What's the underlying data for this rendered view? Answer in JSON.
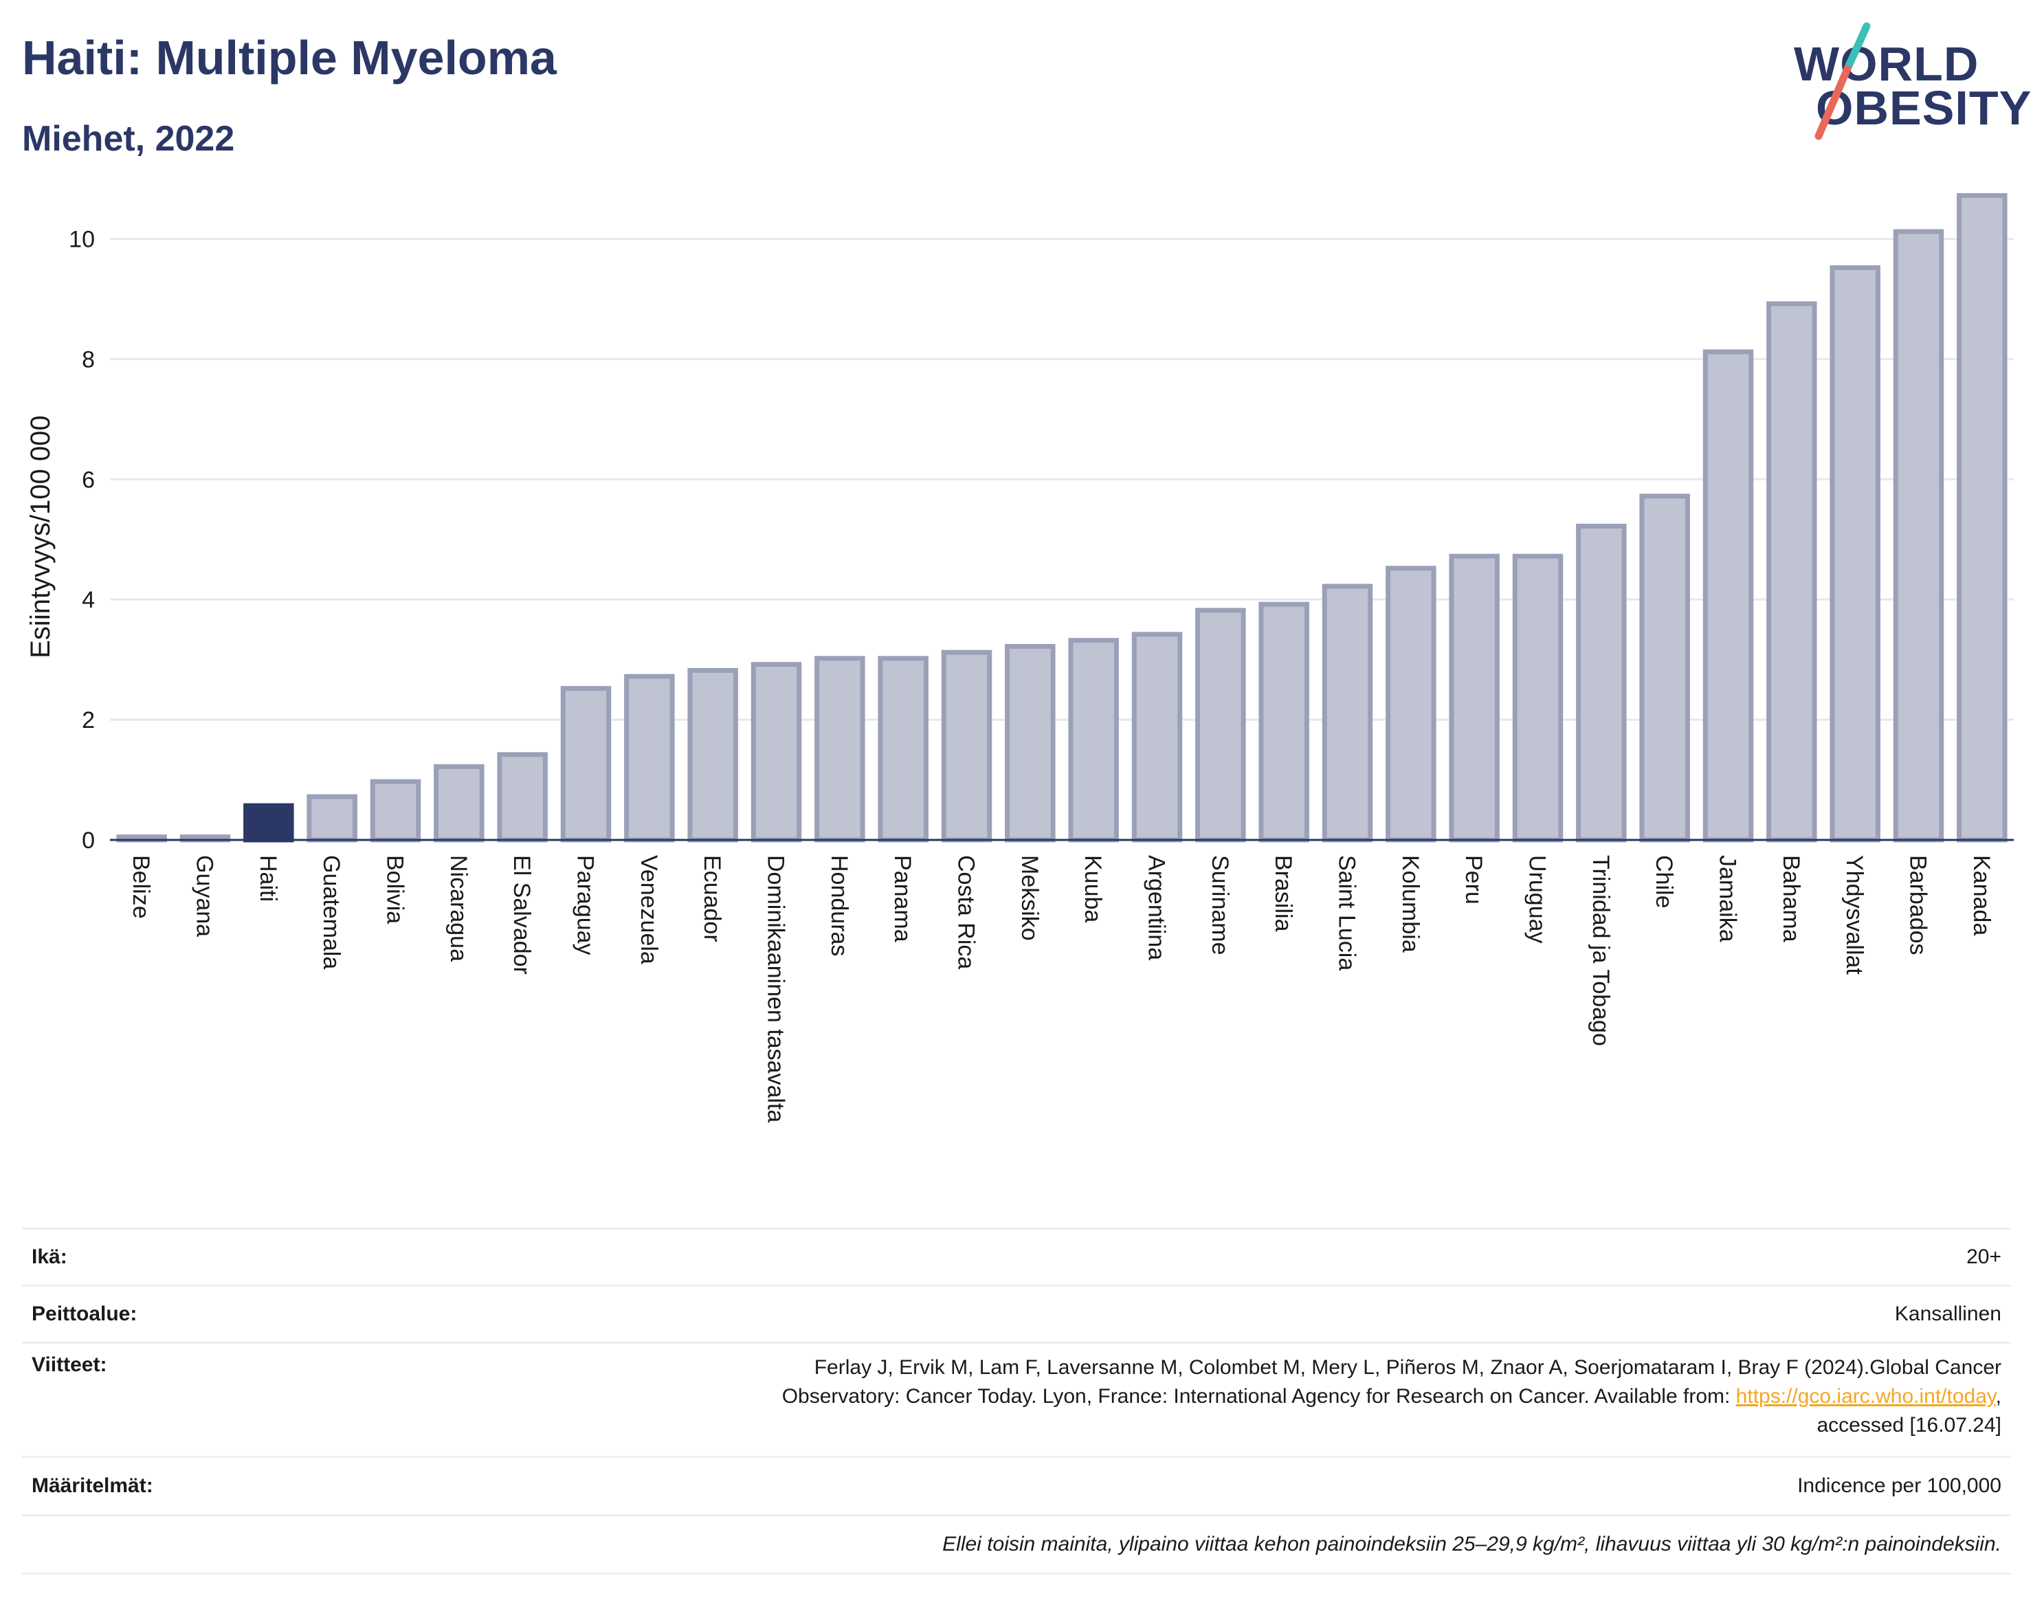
{
  "header": {
    "title": "Haiti: Multiple Myeloma",
    "subtitle": "Miehet, 2022"
  },
  "logo": {
    "line1": "WORLD",
    "line2": "OBESITY",
    "colors": {
      "text": "#2b3765",
      "slash_top": "#3cbfb8",
      "slash_bottom": "#e8685a"
    }
  },
  "chart_data": {
    "type": "bar",
    "ylabel": "Esiintyvyys/100 000",
    "xlabel": "",
    "ylim": [
      0,
      11
    ],
    "yticks": [
      0,
      2,
      4,
      6,
      8,
      10
    ],
    "grid": true,
    "highlight": "Haiti",
    "colors": {
      "bar": "#c0c4d2",
      "bar_border": "#9aa0b8",
      "highlight": "#2b3765",
      "grid": "#e6e8ef"
    },
    "categories": [
      "Belize",
      "Guyana",
      "Haiti",
      "Guatemala",
      "Bolivia",
      "Nicaragua",
      "El Salvador",
      "Paraguay",
      "Venezuela",
      "Ecuador",
      "Dominikaaninen tasavalta",
      "Honduras",
      "Panama",
      "Costa Rica",
      "Meksiko",
      "Kuuba",
      "Argentiina",
      "Suriname",
      "Brasilia",
      "Saint Lucia",
      "Kolumbia",
      "Peru",
      "Uruguay",
      "Trinidad ja Tobago",
      "Chile",
      "Jamaika",
      "Bahama",
      "Yhdysvallat",
      "Barbados",
      "Kanada"
    ],
    "values": [
      0.05,
      0.05,
      0.57,
      0.72,
      0.97,
      1.22,
      1.42,
      2.52,
      2.72,
      2.82,
      2.92,
      3.02,
      3.02,
      3.12,
      3.22,
      3.32,
      3.42,
      3.82,
      3.92,
      4.22,
      4.52,
      4.72,
      4.72,
      5.22,
      5.72,
      8.12,
      8.92,
      9.52,
      10.12,
      10.72
    ]
  },
  "info": {
    "age_label": "Ikä:",
    "age_value": "20+",
    "coverage_label": "Peittoalue:",
    "coverage_value": "Kansallinen",
    "refs_label": "Viitteet:",
    "refs_line1": "Ferlay J, Ervik M, Lam F, Laversanne M, Colombet M, Mery L, Piñeros M, Znaor A, Soerjomataram I, Bray F (2024).Global Cancer",
    "refs_line2": "Observatory: Cancer Today. Lyon, France: International Agency for Research on Cancer. Available from: ",
    "refs_link": "https://gco.iarc.who.int/today",
    "refs_line2_end": ",",
    "refs_line3": "accessed [16.07.24]",
    "defs_label": "Määritelmät:",
    "defs_value": "Indicence per 100,000",
    "note": "Ellei toisin mainita, ylipaino viittaa kehon painoindeksiin 25–29,9 kg/m², lihavuus viittaa yli 30 kg/m²:n painoindeksiin."
  }
}
